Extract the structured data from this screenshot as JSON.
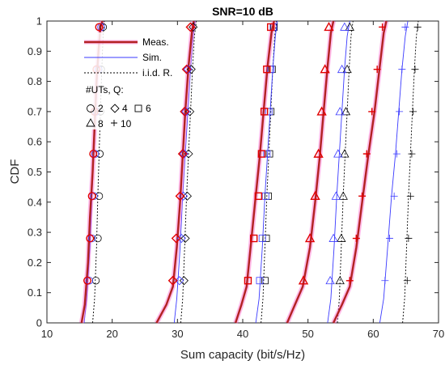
{
  "chart_data": {
    "type": "line",
    "title": "SNR=10 dB",
    "xlabel": "Sum capacity (bit/s/Hz)",
    "ylabel": "CDF",
    "xlim": [
      10,
      70
    ],
    "ylim": [
      0,
      1
    ],
    "xticks": [
      "10",
      "20",
      "30",
      "40",
      "50",
      "60",
      "70"
    ],
    "yticks": [
      "0",
      "0.1",
      "0.2",
      "0.3",
      "0.4",
      "0.5",
      "0.6",
      "0.7",
      "0.8",
      "0.9",
      "1"
    ],
    "grid": false,
    "legend": {
      "placement": "top-left",
      "entries": [
        "Meas.",
        "Sim.",
        "i.i.d. R."
      ],
      "marker_title": "#UTs,  Q:",
      "marker_labels": [
        "2",
        "4",
        "6",
        "8",
        "10"
      ]
    },
    "colors": {
      "meas": "#b22222",
      "meas_halo": "#ff66cc",
      "sim": "#3a3aff",
      "iid": "#000000",
      "marker_meas": "#e00000"
    },
    "marker_cdf_levels": [
      0.14,
      0.28,
      0.42,
      0.56,
      0.7,
      0.84,
      0.98
    ],
    "groups": [
      {
        "num_uts": "2",
        "marker": "circle",
        "meas": {
          "x": [
            15.3,
            15.8,
            16.3,
            16.6,
            17.0,
            17.3,
            17.6,
            17.9,
            18.2,
            18.5
          ],
          "y": [
            0,
            0.06,
            0.2,
            0.35,
            0.5,
            0.65,
            0.8,
            0.9,
            0.98,
            1.0
          ]
        },
        "sim": {
          "x": [
            15.7,
            16.1,
            16.6,
            16.9,
            17.2,
            17.5,
            17.8,
            18.1,
            18.4
          ],
          "y": [
            0,
            0.08,
            0.25,
            0.42,
            0.56,
            0.7,
            0.84,
            0.95,
            1.0
          ]
        },
        "iid": {
          "x": [
            17.0,
            17.3,
            17.6,
            17.8,
            18.0,
            18.2,
            18.4,
            18.6,
            18.8
          ],
          "y": [
            0,
            0.08,
            0.25,
            0.42,
            0.56,
            0.7,
            0.84,
            0.95,
            1.0
          ]
        },
        "meas_markers_x": [
          16.2,
          16.6,
          16.9,
          17.1,
          17.3,
          17.6,
          18.0
        ],
        "sim_markers_x": [
          16.5,
          16.9,
          17.2,
          17.4,
          17.6,
          17.9,
          18.3
        ],
        "iid_markers_x": [
          17.5,
          17.8,
          18.0,
          18.1,
          18.2,
          18.3,
          18.6
        ]
      },
      {
        "num_uts": "4",
        "marker": "diamond",
        "meas": {
          "x": [
            26.8,
            28.3,
            29.3,
            29.9,
            30.4,
            30.8,
            31.2,
            31.7,
            32.2,
            32.5
          ],
          "y": [
            0,
            0.06,
            0.12,
            0.25,
            0.4,
            0.55,
            0.7,
            0.85,
            0.96,
            1.0
          ]
        },
        "sim": {
          "x": [
            29.5,
            29.9,
            30.4,
            30.8,
            31.2,
            31.6,
            32.0,
            32.4,
            32.7
          ],
          "y": [
            0,
            0.08,
            0.25,
            0.42,
            0.56,
            0.7,
            0.84,
            0.95,
            1.0
          ]
        },
        "iid": {
          "x": [
            30.5,
            30.8,
            31.1,
            31.4,
            31.7,
            32.0,
            32.3,
            32.6,
            32.9
          ],
          "y": [
            0,
            0.08,
            0.25,
            0.42,
            0.56,
            0.7,
            0.84,
            0.95,
            1.0
          ]
        },
        "meas_markers_x": [
          29.3,
          29.8,
          30.4,
          30.8,
          31.1,
          31.4,
          32.0
        ],
        "sim_markers_x": [
          30.3,
          30.6,
          30.9,
          31.0,
          31.3,
          31.6,
          32.0
        ],
        "iid_markers_x": [
          31.0,
          31.2,
          31.5,
          31.7,
          31.9,
          32.1,
          32.4
        ]
      },
      {
        "num_uts": "6",
        "marker": "square",
        "meas": {
          "x": [
            38.9,
            39.8,
            40.6,
            41.2,
            41.9,
            42.6,
            43.2,
            43.8,
            44.4,
            44.8
          ],
          "y": [
            0,
            0.06,
            0.12,
            0.25,
            0.4,
            0.55,
            0.7,
            0.85,
            0.96,
            1.0
          ]
        },
        "sim": {
          "x": [
            42.0,
            42.5,
            43.0,
            43.4,
            43.8,
            44.2,
            44.6,
            45.0,
            45.3
          ],
          "y": [
            0,
            0.08,
            0.25,
            0.42,
            0.56,
            0.7,
            0.84,
            0.95,
            1.0
          ]
        },
        "iid": {
          "x": [
            42.8,
            43.1,
            43.4,
            43.7,
            44.0,
            44.3,
            44.6,
            44.9,
            45.2
          ],
          "y": [
            0,
            0.08,
            0.25,
            0.42,
            0.56,
            0.7,
            0.84,
            0.95,
            1.0
          ]
        },
        "meas_markers_x": [
          40.8,
          41.7,
          42.4,
          42.9,
          43.3,
          43.7,
          44.3
        ],
        "sim_markers_x": [
          42.6,
          43.0,
          43.5,
          43.7,
          44.0,
          44.3,
          44.7
        ],
        "iid_markers_x": [
          43.4,
          43.6,
          43.9,
          44.1,
          44.3,
          44.5,
          44.8
        ]
      },
      {
        "num_uts": "8",
        "marker": "triangle",
        "meas": {
          "x": [
            46.8,
            48.0,
            49.2,
            50.3,
            51.1,
            51.8,
            52.4,
            53.0,
            53.5,
            53.9
          ],
          "y": [
            0,
            0.06,
            0.12,
            0.25,
            0.4,
            0.55,
            0.7,
            0.85,
            0.96,
            1.0
          ]
        },
        "sim": {
          "x": [
            53.0,
            53.5,
            54.0,
            54.4,
            54.8,
            55.2,
            55.6,
            56.0,
            56.4
          ],
          "y": [
            0,
            0.08,
            0.25,
            0.42,
            0.56,
            0.7,
            0.84,
            0.95,
            1.0
          ]
        },
        "iid": {
          "x": [
            54.5,
            54.8,
            55.1,
            55.4,
            55.7,
            56.0,
            56.3,
            56.6,
            56.9
          ],
          "y": [
            0,
            0.08,
            0.25,
            0.42,
            0.56,
            0.7,
            0.84,
            0.95,
            1.0
          ]
        },
        "meas_markers_x": [
          49.3,
          50.3,
          51.1,
          51.6,
          52.1,
          52.6,
          53.2
        ],
        "sim_markers_x": [
          53.4,
          53.9,
          54.3,
          54.6,
          54.9,
          55.2,
          55.6
        ],
        "iid_markers_x": [
          54.9,
          55.1,
          55.4,
          55.6,
          55.8,
          56.0,
          56.4
        ]
      },
      {
        "num_uts": "10",
        "marker": "plus",
        "meas": {
          "x": [
            53.9,
            55.2,
            56.4,
            57.4,
            58.3,
            59.2,
            60.2,
            61.0,
            61.6,
            62.0
          ],
          "y": [
            0,
            0.06,
            0.12,
            0.25,
            0.4,
            0.55,
            0.7,
            0.85,
            0.96,
            1.0
          ]
        },
        "sim": {
          "x": [
            61.0,
            61.6,
            62.2,
            62.8,
            63.4,
            63.9,
            64.4,
            64.9,
            65.3
          ],
          "y": [
            0,
            0.08,
            0.25,
            0.42,
            0.56,
            0.7,
            0.84,
            0.95,
            1.0
          ]
        },
        "iid": {
          "x": [
            64.5,
            64.8,
            65.1,
            65.4,
            65.7,
            66.0,
            66.3,
            66.6,
            66.9
          ],
          "y": [
            0,
            0.08,
            0.25,
            0.42,
            0.56,
            0.7,
            0.84,
            0.95,
            1.0
          ]
        },
        "meas_markers_x": [
          56.4,
          57.4,
          58.3,
          59.0,
          59.8,
          60.6,
          61.4
        ],
        "sim_markers_x": [
          61.8,
          62.5,
          63.2,
          63.6,
          64.0,
          64.4,
          64.9
        ],
        "iid_markers_x": [
          65.2,
          65.4,
          65.7,
          65.9,
          66.1,
          66.4,
          66.8
        ]
      }
    ]
  }
}
